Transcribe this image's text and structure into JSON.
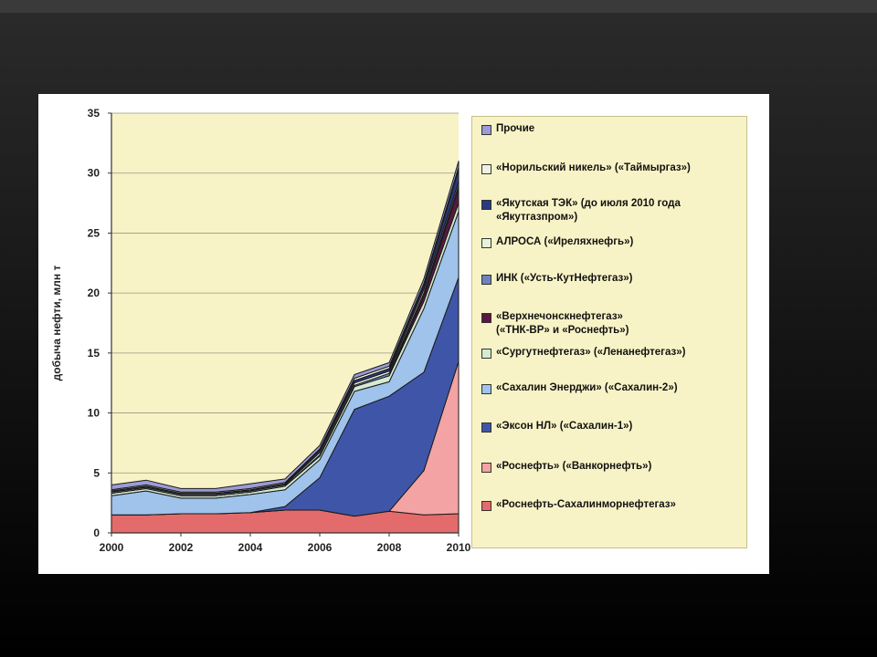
{
  "chart_data": {
    "type": "area",
    "stacked": true,
    "xlabel": "",
    "ylabel": "добыча нефти, млн т",
    "x": [
      2000,
      2001,
      2002,
      2003,
      2004,
      2005,
      2006,
      2007,
      2008,
      2009,
      2010
    ],
    "xticks": [
      "2000",
      "2002",
      "2004",
      "2006",
      "2008",
      "2010"
    ],
    "xtick_values": [
      2000,
      2002,
      2004,
      2006,
      2008,
      2010
    ],
    "yticks": [
      "0",
      "5",
      "10",
      "15",
      "20",
      "25",
      "30",
      "35"
    ],
    "ylim": [
      0,
      35
    ],
    "xlim": [
      2000,
      2010
    ],
    "grid": "horizontal",
    "legend_position": "right",
    "series": [
      {
        "name": "«Роснефть-Сахалинморнефтегаз»",
        "color": "#e36b6b",
        "values": [
          1.5,
          1.5,
          1.6,
          1.6,
          1.7,
          1.9,
          1.9,
          1.4,
          1.8,
          1.5,
          1.6
        ]
      },
      {
        "name": "«Роснефть» («Ванкорнефть»)",
        "color": "#f3a3a3",
        "values": [
          0,
          0,
          0,
          0,
          0,
          0,
          0,
          0,
          0,
          3.7,
          12.7
        ]
      },
      {
        "name": "«Эксон НЛ» («Сахалин-1»)",
        "color": "#3f56a8",
        "values": [
          0,
          0,
          0,
          0,
          0,
          0.3,
          2.7,
          8.9,
          9.6,
          8.2,
          7.0
        ]
      },
      {
        "name": "«Сахалин Энерджи» («Сахалин-2»)",
        "color": "#9fc3ea",
        "values": [
          1.6,
          2.0,
          1.3,
          1.3,
          1.5,
          1.4,
          1.5,
          1.5,
          1.2,
          5.3,
          5.5
        ]
      },
      {
        "name": "«Сургутнефтегаз» («Ленанефтегаз»)",
        "color": "#d6ead2",
        "values": [
          0.2,
          0.2,
          0.2,
          0.2,
          0.2,
          0.3,
          0.3,
          0.4,
          0.5,
          0.6,
          0.7
        ]
      },
      {
        "name": "«Верхнечонскнефтегаз»\n(«ТНК-ВР» и «Роснефть»)",
        "color": "#5a1840",
        "values": [
          0,
          0,
          0,
          0,
          0,
          0,
          0,
          0,
          0,
          0.5,
          1.2
        ]
      },
      {
        "name": "ИНК («Усть-КутНефтегаз»)",
        "color": "#6f82c0",
        "values": [
          0,
          0,
          0,
          0,
          0,
          0,
          0.1,
          0.1,
          0.2,
          0.2,
          0.3
        ]
      },
      {
        "name": "АЛРОСА («Иреляхнефгь»)",
        "color": "#e8f2dc",
        "values": [
          0.1,
          0.1,
          0.1,
          0.1,
          0.1,
          0.1,
          0.2,
          0.2,
          0.2,
          0.3,
          0.3
        ]
      },
      {
        "name": "«Якутская ТЭК» (до июля 2010 года\n«Якутгазпром»)",
        "color": "#2a3a80",
        "values": [
          0.1,
          0.1,
          0.1,
          0.1,
          0.1,
          0.1,
          0.2,
          0.2,
          0.2,
          0.3,
          1.0
        ]
      },
      {
        "name": "«Норильский никель» («Таймыргаз»)",
        "color": "#f0f0e0",
        "values": [
          0.1,
          0.1,
          0.1,
          0.1,
          0.1,
          0.1,
          0.1,
          0.2,
          0.2,
          0.2,
          0.2
        ]
      },
      {
        "name": "Прочие",
        "color": "#9b9bd6",
        "values": [
          0.4,
          0.4,
          0.3,
          0.3,
          0.4,
          0.3,
          0.3,
          0.3,
          0.3,
          0.4,
          0.5
        ]
      }
    ],
    "legend_order": [
      10,
      9,
      8,
      7,
      6,
      5,
      4,
      3,
      2,
      1,
      0
    ],
    "plot_background": "#f8f3c6"
  }
}
